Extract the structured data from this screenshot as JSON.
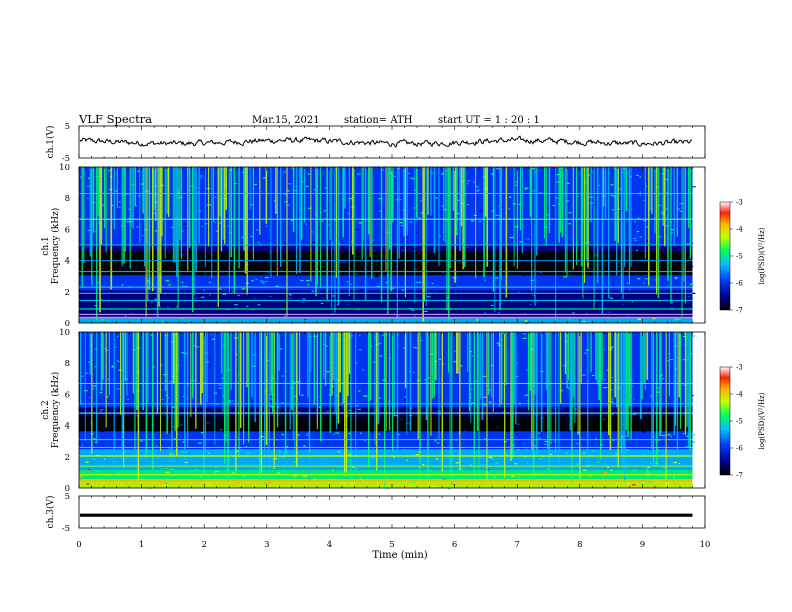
{
  "header": {
    "title": "VLF  Spectra",
    "date": "Mar.15, 2021",
    "station": "station= ATH",
    "start": "start  UT  =    1  : 20 : 1"
  },
  "chart_data": [
    {
      "type": "line",
      "name": "ch1-waveform",
      "ylabel": "ch.1(V)",
      "ylim": [
        -5,
        5
      ],
      "yticks": [
        "5",
        "-5"
      ],
      "xlim": [
        0,
        10
      ],
      "line_color": "#000000"
    },
    {
      "type": "heatmap",
      "name": "ch1-spectrogram",
      "ylabel": "ch.1\nFrequency (kHz)",
      "ylim": [
        0,
        10
      ],
      "yticks": [
        "0",
        "2",
        "4",
        "6",
        "8",
        "10"
      ],
      "xlim": [
        0,
        10
      ],
      "data_end_min": 9.8,
      "colorbar": {
        "label": "log(PSD)(V²/Hz)",
        "range": [
          -7,
          -3
        ],
        "ticks": [
          "-3",
          "-4",
          "-5",
          "-6",
          "-7"
        ]
      }
    },
    {
      "type": "heatmap",
      "name": "ch2-spectrogram",
      "ylabel": "ch.2\nFrequency (kHz)",
      "ylim": [
        0,
        10
      ],
      "yticks": [
        "0",
        "2",
        "4",
        "6",
        "8",
        "10"
      ],
      "xlim": [
        0,
        10
      ],
      "data_end_min": 9.8,
      "colorbar": {
        "label": "log(PSD)(V²/Hz)",
        "range": [
          -7,
          -3
        ],
        "ticks": [
          "-3",
          "-4",
          "-5",
          "-6",
          "-7"
        ]
      }
    },
    {
      "type": "line",
      "name": "ch3-waveform",
      "ylabel": "ch.3(V)",
      "ylim": [
        -5,
        5
      ],
      "yticks": [
        "5",
        "-5"
      ],
      "xlim": [
        0,
        10
      ],
      "xlabel": "Time  (min)",
      "xticks": [
        "0",
        "1",
        "2",
        "3",
        "4",
        "5",
        "6",
        "7",
        "8",
        "9",
        "10"
      ],
      "line_color": "#000000"
    }
  ]
}
